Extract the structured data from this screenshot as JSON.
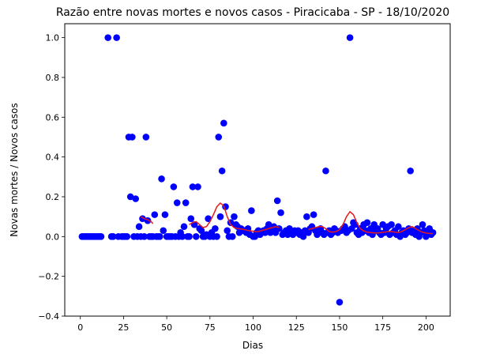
{
  "chart_data": {
    "type": "scatter",
    "title": "Razão entre novas mortes e novos casos - Piracicaba - SP - 18/10/2020",
    "xlabel": "Dias",
    "ylabel": "Novas mortes / Novos casos",
    "xlim": [
      -9,
      214
    ],
    "ylim": [
      -0.4,
      1.07
    ],
    "xticks": [
      0,
      25,
      50,
      75,
      100,
      125,
      150,
      175,
      200
    ],
    "yticks": [
      -0.4,
      -0.2,
      0.0,
      0.2,
      0.4,
      0.6,
      0.8,
      1.0
    ],
    "ytick_labels": [
      "−0.4",
      "−0.2",
      "0.0",
      "0.2",
      "0.4",
      "0.6",
      "0.8",
      "1.0"
    ],
    "grid": false,
    "colors": {
      "points": "#0000ff",
      "smooth_line": "#e41a1c",
      "axes": "#000000"
    },
    "series": [
      {
        "type": "scatter",
        "points": [
          [
            1,
            0
          ],
          [
            2,
            0
          ],
          [
            3,
            0
          ],
          [
            4,
            0
          ],
          [
            5,
            0
          ],
          [
            6,
            0
          ],
          [
            7,
            0
          ],
          [
            8,
            0
          ],
          [
            9,
            0
          ],
          [
            10,
            0
          ],
          [
            11,
            0
          ],
          [
            12,
            0
          ],
          [
            16,
            1.0
          ],
          [
            18,
            0
          ],
          [
            19,
            0
          ],
          [
            21,
            1.0
          ],
          [
            22,
            0
          ],
          [
            24,
            0
          ],
          [
            25,
            0
          ],
          [
            26,
            0
          ],
          [
            27,
            0
          ],
          [
            28,
            0.5
          ],
          [
            29,
            0.2
          ],
          [
            30,
            0.5
          ],
          [
            31,
            0
          ],
          [
            32,
            0.19
          ],
          [
            33,
            0
          ],
          [
            34,
            0.05
          ],
          [
            35,
            0
          ],
          [
            36,
            0.09
          ],
          [
            37,
            0
          ],
          [
            38,
            0.5
          ],
          [
            39,
            0.08
          ],
          [
            40,
            0
          ],
          [
            41,
            0
          ],
          [
            42,
            0
          ],
          [
            43,
            0.11
          ],
          [
            44,
            0
          ],
          [
            45,
            0
          ],
          [
            46,
            0
          ],
          [
            47,
            0.29
          ],
          [
            48,
            0.03
          ],
          [
            49,
            0.11
          ],
          [
            50,
            0
          ],
          [
            51,
            0
          ],
          [
            52,
            0
          ],
          [
            53,
            0
          ],
          [
            54,
            0.25
          ],
          [
            55,
            0
          ],
          [
            56,
            0.17
          ],
          [
            57,
            0
          ],
          [
            58,
            0.02
          ],
          [
            59,
            0
          ],
          [
            60,
            0.05
          ],
          [
            61,
            0.17
          ],
          [
            62,
            0
          ],
          [
            63,
            0
          ],
          [
            64,
            0.09
          ],
          [
            65,
            0.25
          ],
          [
            66,
            0.06
          ],
          [
            67,
            0
          ],
          [
            68,
            0.25
          ],
          [
            69,
            0.04
          ],
          [
            70,
            0.03
          ],
          [
            71,
            0
          ],
          [
            72,
            0
          ],
          [
            73,
            0.01
          ],
          [
            74,
            0.09
          ],
          [
            75,
            0
          ],
          [
            76,
            0.02
          ],
          [
            77,
            0
          ],
          [
            78,
            0.04
          ],
          [
            79,
            0
          ],
          [
            80,
            0.5
          ],
          [
            81,
            0.1
          ],
          [
            82,
            0.33
          ],
          [
            83,
            0.57
          ],
          [
            84,
            0.15
          ],
          [
            85,
            0.03
          ],
          [
            86,
            0
          ],
          [
            87,
            0.07
          ],
          [
            88,
            0
          ],
          [
            89,
            0.1
          ],
          [
            90,
            0.06
          ],
          [
            91,
            0.05
          ],
          [
            92,
            0.02
          ],
          [
            93,
            0.04
          ],
          [
            94,
            0.03
          ],
          [
            95,
            0.03
          ],
          [
            96,
            0.02
          ],
          [
            97,
            0.04
          ],
          [
            98,
            0.01
          ],
          [
            99,
            0.13
          ],
          [
            100,
            0
          ],
          [
            101,
            0
          ],
          [
            102,
            0.02
          ],
          [
            103,
            0.03
          ],
          [
            104,
            0.01
          ],
          [
            105,
            0.02
          ],
          [
            106,
            0.03
          ],
          [
            107,
            0.02
          ],
          [
            108,
            0.04
          ],
          [
            109,
            0.06
          ],
          [
            110,
            0.02
          ],
          [
            111,
            0.03
          ],
          [
            112,
            0.05
          ],
          [
            113,
            0.02
          ],
          [
            114,
            0.18
          ],
          [
            115,
            0.04
          ],
          [
            116,
            0.12
          ],
          [
            117,
            0.01
          ],
          [
            118,
            0.02
          ],
          [
            119,
            0.03
          ],
          [
            120,
            0.01
          ],
          [
            121,
            0.04
          ],
          [
            122,
            0.02
          ],
          [
            123,
            0.01
          ],
          [
            124,
            0.03
          ],
          [
            125,
            0.02
          ],
          [
            126,
            0.03
          ],
          [
            127,
            0.01
          ],
          [
            128,
            0.02
          ],
          [
            129,
            0
          ],
          [
            130,
            0.03
          ],
          [
            131,
            0.1
          ],
          [
            132,
            0.02
          ],
          [
            133,
            0.04
          ],
          [
            134,
            0.05
          ],
          [
            135,
            0.11
          ],
          [
            136,
            0.03
          ],
          [
            137,
            0.01
          ],
          [
            138,
            0.02
          ],
          [
            139,
            0.04
          ],
          [
            140,
            0.02
          ],
          [
            141,
            0.01
          ],
          [
            142,
            0.33
          ],
          [
            143,
            0.02
          ],
          [
            144,
            0.03
          ],
          [
            145,
            0.01
          ],
          [
            146,
            0.02
          ],
          [
            147,
            0.04
          ],
          [
            148,
            0.03
          ],
          [
            149,
            0.02
          ],
          [
            150,
            -0.33
          ],
          [
            151,
            0.03
          ],
          [
            152,
            0.04
          ],
          [
            153,
            0.05
          ],
          [
            154,
            0.02
          ],
          [
            155,
            0.03
          ],
          [
            156,
            1.0
          ],
          [
            157,
            0.04
          ],
          [
            158,
            0.07
          ],
          [
            159,
            0.06
          ],
          [
            160,
            0.02
          ],
          [
            161,
            0.01
          ],
          [
            162,
            0.04
          ],
          [
            163,
            0.02
          ],
          [
            164,
            0.06
          ],
          [
            165,
            0.03
          ],
          [
            166,
            0.07
          ],
          [
            167,
            0.02
          ],
          [
            168,
            0.04
          ],
          [
            169,
            0.01
          ],
          [
            170,
            0.06
          ],
          [
            171,
            0.03
          ],
          [
            172,
            0.04
          ],
          [
            173,
            0.02
          ],
          [
            174,
            0.01
          ],
          [
            175,
            0.06
          ],
          [
            176,
            0.02
          ],
          [
            177,
            0.04
          ],
          [
            178,
            0.05
          ],
          [
            179,
            0.01
          ],
          [
            180,
            0.06
          ],
          [
            181,
            0.02
          ],
          [
            182,
            0.03
          ],
          [
            183,
            0.01
          ],
          [
            184,
            0.05
          ],
          [
            185,
            0
          ],
          [
            186,
            0.02
          ],
          [
            187,
            0.03
          ],
          [
            188,
            0.01
          ],
          [
            189,
            0.02
          ],
          [
            190,
            0.04
          ],
          [
            191,
            0.33
          ],
          [
            192,
            0.02
          ],
          [
            193,
            0.03
          ],
          [
            194,
            0.01
          ],
          [
            195,
            0.04
          ],
          [
            196,
            0
          ],
          [
            197,
            0.02
          ],
          [
            198,
            0.06
          ],
          [
            199,
            0.03
          ],
          [
            200,
            0
          ],
          [
            201,
            0.02
          ],
          [
            202,
            0.04
          ],
          [
            203,
            0.01
          ],
          [
            204,
            0.02
          ]
        ]
      },
      {
        "type": "line",
        "segments": [
          [
            [
              35,
              0.1
            ],
            [
              37,
              0.09
            ],
            [
              39,
              0.085
            ],
            [
              41,
              0.075
            ],
            [
              42,
              0.065
            ]
          ],
          [
            [
              63,
              0.06
            ],
            [
              65,
              0.07
            ],
            [
              67,
              0.075
            ],
            [
              69,
              0.06
            ],
            [
              71,
              0.045
            ],
            [
              73,
              0.05
            ],
            [
              75,
              0.075
            ],
            [
              77,
              0.11
            ],
            [
              79,
              0.15
            ],
            [
              81,
              0.168
            ],
            [
              83,
              0.155
            ],
            [
              85,
              0.1
            ],
            [
              87,
              0.06
            ],
            [
              89,
              0.045
            ],
            [
              91,
              0.04
            ],
            [
              93,
              0.038
            ],
            [
              95,
              0.035
            ],
            [
              97,
              0.03
            ],
            [
              99,
              0.028
            ],
            [
              101,
              0.025
            ],
            [
              103,
              0.025
            ],
            [
              105,
              0.03
            ],
            [
              107,
              0.035
            ],
            [
              109,
              0.04
            ],
            [
              111,
              0.045
            ],
            [
              113,
              0.05
            ],
            [
              115,
              0.045
            ]
          ],
          [
            [
              132,
              0.035
            ],
            [
              134,
              0.04
            ],
            [
              136,
              0.045
            ],
            [
              138,
              0.05
            ],
            [
              140,
              0.05
            ],
            [
              142,
              0.04
            ],
            [
              144,
              0.025
            ],
            [
              146,
              0.022
            ],
            [
              148,
              0.025
            ],
            [
              150,
              0.035
            ],
            [
              152,
              0.06
            ],
            [
              154,
              0.1
            ],
            [
              156,
              0.125
            ],
            [
              158,
              0.11
            ],
            [
              160,
              0.07
            ],
            [
              162,
              0.04
            ],
            [
              164,
              0.028
            ],
            [
              166,
              0.022
            ],
            [
              168,
              0.02
            ],
            [
              170,
              0.018
            ],
            [
              172,
              0.018
            ],
            [
              174,
              0.02
            ],
            [
              176,
              0.022
            ],
            [
              178,
              0.025
            ],
            [
              180,
              0.025
            ],
            [
              182,
              0.022
            ],
            [
              184,
              0.02
            ],
            [
              186,
              0.025
            ],
            [
              188,
              0.035
            ],
            [
              190,
              0.045
            ],
            [
              192,
              0.05
            ],
            [
              194,
              0.04
            ],
            [
              196,
              0.03
            ],
            [
              198,
              0.022
            ],
            [
              200,
              0.018
            ],
            [
              202,
              0.015
            ],
            [
              204,
              0.015
            ]
          ]
        ]
      }
    ]
  }
}
